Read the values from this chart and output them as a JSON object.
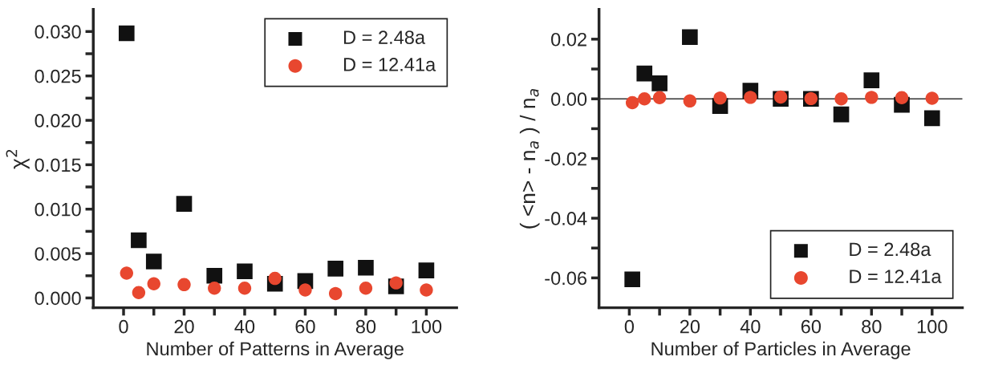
{
  "chart_data": [
    {
      "type": "scatter",
      "xlabel": "Number of Patterns in Average",
      "ylabel": "χ$^{2}$",
      "x": [
        1,
        5,
        10,
        20,
        30,
        40,
        50,
        60,
        70,
        80,
        90,
        100
      ],
      "series": [
        {
          "name": "D = 2.48a",
          "color": "#111111",
          "marker": "square",
          "values": [
            0.0298,
            0.0065,
            0.0041,
            0.0106,
            0.0025,
            0.003,
            0.0016,
            0.0019,
            0.0033,
            0.0034,
            0.0013,
            0.0031
          ]
        },
        {
          "name": "D = 12.41a",
          "color": "#e8472f",
          "marker": "circle",
          "values": [
            0.0028,
            0.0006,
            0.0016,
            0.0015,
            0.0011,
            0.0011,
            0.0022,
            0.0009,
            0.0005,
            0.0011,
            0.0017,
            0.0009
          ]
        }
      ],
      "xlim": [
        -10,
        110
      ],
      "ylim": [
        -0.0011,
        0.0325
      ],
      "xticks": [
        0,
        {
          "value": 10,
          "label": null
        },
        20,
        {
          "value": 30,
          "label": null
        },
        40,
        {
          "value": 50,
          "label": null
        },
        60,
        {
          "value": 70,
          "label": null
        },
        80,
        {
          "value": 90,
          "label": null
        },
        100
      ],
      "yticks": [
        {
          "value": 0,
          "label": "0.000"
        },
        {
          "value": 0.0025,
          "label": null
        },
        {
          "value": 0.005,
          "label": "0.005"
        },
        {
          "value": 0.0075,
          "label": null
        },
        {
          "value": 0.01,
          "label": "0.010"
        },
        {
          "value": 0.0125,
          "label": null
        },
        {
          "value": 0.015,
          "label": "0.015"
        },
        {
          "value": 0.0175,
          "label": null
        },
        {
          "value": 0.02,
          "label": "0.020"
        },
        {
          "value": 0.0225,
          "label": null
        },
        {
          "value": 0.025,
          "label": "0.025"
        },
        {
          "value": 0.0275,
          "label": null
        },
        {
          "value": 0.03,
          "label": "0.030"
        }
      ],
      "legend": "top right",
      "grid": false
    },
    {
      "type": "scatter",
      "xlabel": "Number of Particles in Average",
      "ylabel": "( <n> - n$_{a}$ ) / n$_{a}$",
      "x": [
        1,
        5,
        10,
        20,
        30,
        40,
        50,
        60,
        70,
        80,
        90,
        100
      ],
      "series": [
        {
          "name": "D = 2.48a",
          "color": "#111111",
          "marker": "square",
          "values": [
            -0.0605,
            0.0085,
            0.0052,
            0.0207,
            -0.0024,
            0.0027,
            0.0,
            0.0,
            -0.0052,
            0.0062,
            -0.002,
            -0.0065
          ]
        },
        {
          "name": "D = 12.41a",
          "color": "#e8472f",
          "marker": "circle",
          "values": [
            -0.0013,
            0.0,
            0.0004,
            -0.0007,
            0.0003,
            0.0005,
            0.0006,
            0.0001,
            0.0,
            0.0005,
            0.0004,
            0.0002
          ]
        }
      ],
      "xlim": [
        -10,
        110
      ],
      "ylim": [
        -0.07,
        0.03
      ],
      "xticks": [
        0,
        {
          "value": 10,
          "label": null
        },
        20,
        {
          "value": 30,
          "label": null
        },
        40,
        {
          "value": 50,
          "label": null
        },
        60,
        {
          "value": 70,
          "label": null
        },
        80,
        {
          "value": 90,
          "label": null
        },
        100
      ],
      "yticks": [
        {
          "value": -0.06,
          "label": "-0.06"
        },
        {
          "value": -0.05,
          "label": null
        },
        {
          "value": -0.04,
          "label": "-0.04"
        },
        {
          "value": -0.03,
          "label": null
        },
        {
          "value": -0.02,
          "label": "-0.02"
        },
        {
          "value": -0.01,
          "label": null
        },
        {
          "value": 0,
          "label": "0.00"
        },
        {
          "value": 0.01,
          "label": null
        },
        {
          "value": 0.02,
          "label": "0.02"
        }
      ],
      "ref_lines": [
        {
          "axis": "y",
          "value": 0,
          "color": "#333333",
          "line_style": "solid"
        }
      ],
      "legend": "lower right",
      "grid": false
    }
  ]
}
